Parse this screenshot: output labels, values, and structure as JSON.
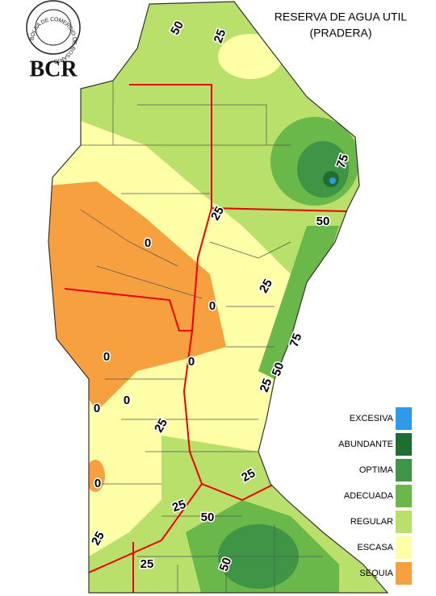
{
  "header": {
    "logo_ring": "BOLSA DE COMERCIO DE ROSARIO",
    "logo": "BCR",
    "title": [
      "RESERVA DE AGUA UTIL",
      "(PRADERA)"
    ]
  },
  "legend": [
    {
      "label": "EXCESIVA",
      "color": "#2f9be8"
    },
    {
      "label": "ABUNDANTE",
      "color": "#1e6e32"
    },
    {
      "label": "OPTIMA",
      "color": "#3f9446"
    },
    {
      "label": "ADECUADA",
      "color": "#6ab84a"
    },
    {
      "label": "REGULAR",
      "color": "#b8e06a"
    },
    {
      "label": "ESCASA",
      "color": "#ffffa8"
    },
    {
      "label": "SEQUIA",
      "color": "#f7a040"
    }
  ],
  "contour_labels": [
    "50",
    "25",
    "75",
    "25",
    "50",
    "0",
    "25",
    "0",
    "75",
    "0",
    "0",
    "50",
    "25",
    "0",
    "0",
    "25",
    "0",
    "25",
    "25",
    "50",
    "25",
    "25",
    "50"
  ]
}
